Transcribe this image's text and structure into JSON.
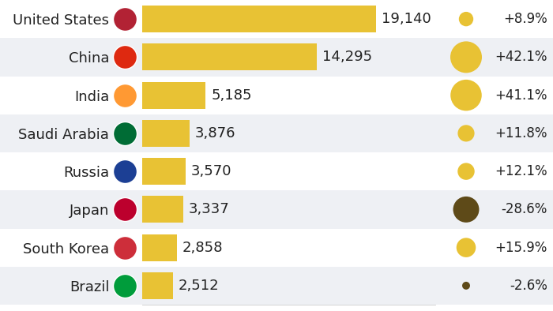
{
  "chart_data": {
    "type": "bar",
    "orientation": "horizontal",
    "categories": [
      "United States",
      "China",
      "India",
      "Saudi Arabia",
      "Russia",
      "Japan",
      "South Korea",
      "Brazil"
    ],
    "values": [
      19140,
      14295,
      5185,
      3876,
      3570,
      3337,
      2858,
      2512
    ],
    "value_labels": [
      "19,140",
      "14,295",
      "5,185",
      "3,876",
      "3,570",
      "3,337",
      "2,858",
      "2,512"
    ],
    "change": [
      8.9,
      42.1,
      41.1,
      11.8,
      12.1,
      -28.6,
      15.9,
      -2.6
    ],
    "change_labels": [
      "+8.9%",
      "+42.1%",
      "+41.1%",
      "+11.8%",
      "+12.1%",
      "-28.6%",
      "+15.9%",
      "-2.6%"
    ],
    "color": "#e8c234",
    "xlim": [
      0,
      24000
    ],
    "xticks": [],
    "data_labels": true,
    "tick_labels": "y",
    "grid": false
  }
}
